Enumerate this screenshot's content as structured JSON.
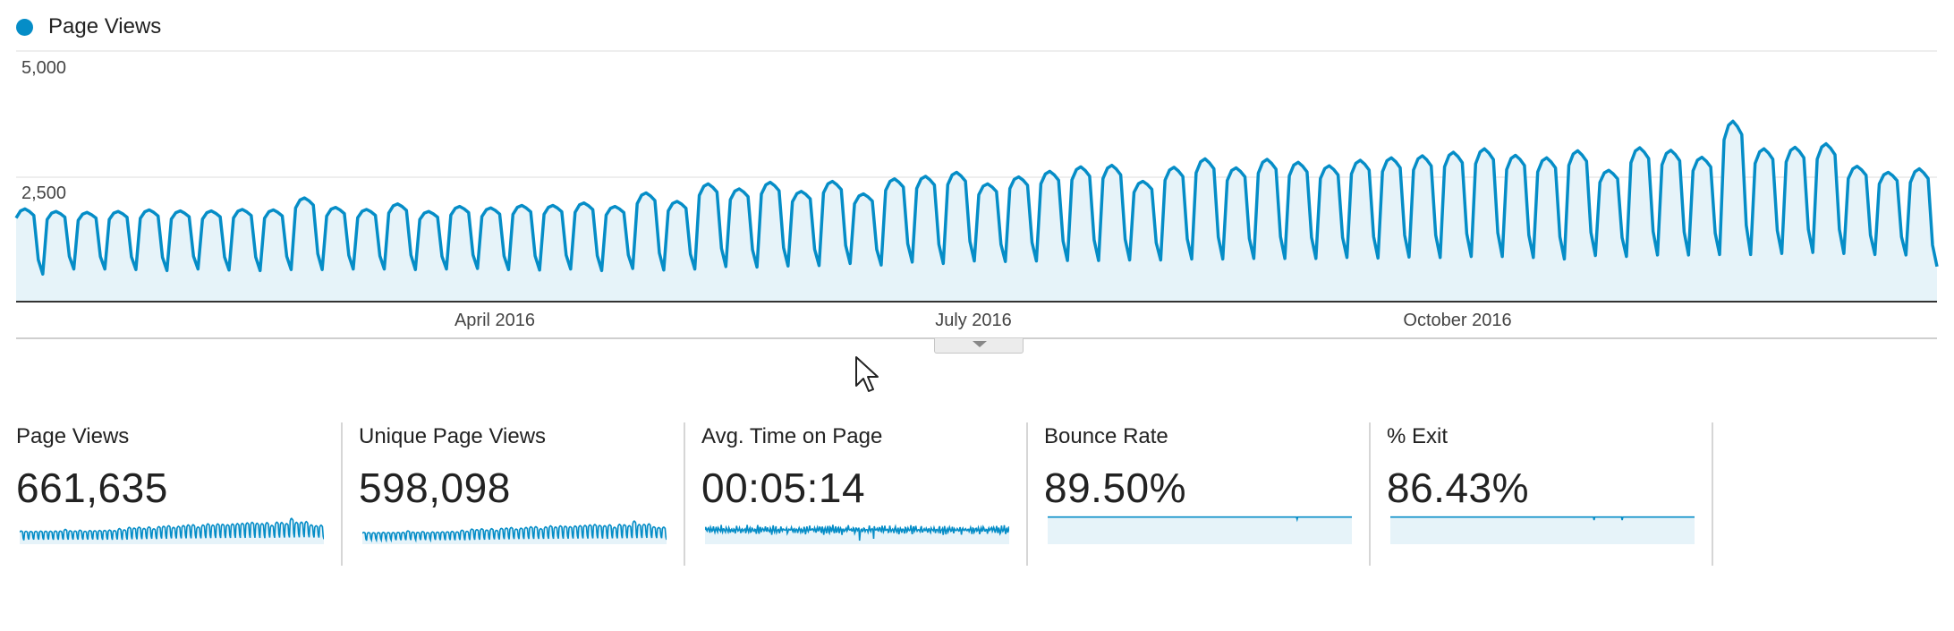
{
  "legend": {
    "label": "Page Views",
    "color": "#058dc7"
  },
  "chart_data": {
    "type": "area",
    "y_ticks": [
      "5,000",
      "2,500"
    ],
    "ylim": [
      0,
      5000
    ],
    "x_ticks": [
      "April 2016",
      "July 2016",
      "October 2016"
    ],
    "series": [
      {
        "name": "Page Views",
        "color": "#058dc7",
        "weekly_peaks": [
          1850,
          1800,
          1780,
          1800,
          1830,
          1810,
          1810,
          1840,
          1830,
          2070,
          1880,
          1840,
          1950,
          1800,
          1900,
          1870,
          1920,
          1920,
          1970,
          1900,
          2170,
          2000,
          2350,
          2250,
          2380,
          2200,
          2400,
          2150,
          2450,
          2500,
          2580,
          2350,
          2490,
          2600,
          2690,
          2720,
          2400,
          2680,
          2850,
          2670,
          2840,
          2780,
          2710,
          2820,
          2870,
          2910,
          2980,
          3050,
          2920,
          2870,
          3010,
          2620,
          3070,
          3020,
          2880,
          3600,
          3050,
          3080,
          3150,
          2700,
          2580,
          2650
        ],
        "weekly_troughs": [
          550,
          650,
          650,
          640,
          620,
          650,
          630,
          620,
          640,
          640,
          650,
          650,
          640,
          650,
          660,
          640,
          630,
          650,
          620,
          660,
          630,
          650,
          700,
          690,
          710,
          720,
          760,
          730,
          790,
          760,
          810,
          800,
          810,
          820,
          820,
          830,
          830,
          850,
          850,
          860,
          860,
          860,
          880,
          870,
          890,
          880,
          900,
          900,
          880,
          850,
          920,
          900,
          930,
          930,
          940,
          940,
          960,
          980,
          960,
          940,
          930,
          700
        ]
      }
    ]
  },
  "expander": {
    "icon": "caret-down-icon"
  },
  "metrics": [
    {
      "label": "Page Views",
      "value": "661,635",
      "sparkline": "pageviews"
    },
    {
      "label": "Unique Page Views",
      "value": "598,098",
      "sparkline": "unique"
    },
    {
      "label": "Avg. Time on Page",
      "value": "00:05:14",
      "sparkline": "time"
    },
    {
      "label": "Bounce Rate",
      "value": "89.50%",
      "sparkline": "bounce"
    },
    {
      "label": "% Exit",
      "value": "86.43%",
      "sparkline": "exit"
    }
  ],
  "colors": {
    "line": "#058dc7",
    "fill": "#e6f3f9",
    "grid": "#e8e8e8",
    "axis": "#333333"
  }
}
